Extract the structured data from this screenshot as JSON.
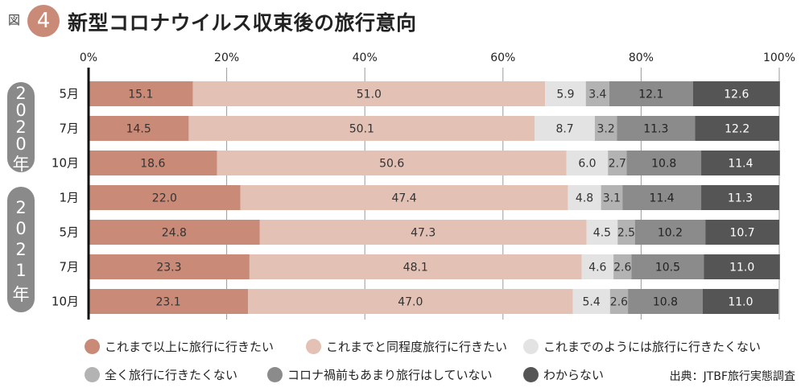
{
  "figure": {
    "fig_label": "図",
    "fig_number": "4",
    "title": "新型コロナウイルス収束後の旅行意向",
    "source": "出典：JTBF旅行実態調査"
  },
  "year_groups": [
    {
      "label": "2020年",
      "chars": [
        "2",
        "0",
        "2",
        "0",
        "年"
      ],
      "rows": 3
    },
    {
      "label": "2021年",
      "chars": [
        "2",
        "0",
        "2",
        "1",
        "年"
      ],
      "rows": 4
    }
  ],
  "chart_data": {
    "type": "bar",
    "orientation": "horizontal",
    "stacked": true,
    "percent": true,
    "title": "新型コロナウイルス収束後の旅行意向",
    "categories": [
      "5月",
      "7月",
      "10月",
      "1月",
      "5月",
      "7月",
      "10月"
    ],
    "xticks": [
      "0%",
      "20%",
      "40%",
      "60%",
      "80%",
      "100%"
    ],
    "xlim": [
      0,
      100
    ],
    "grid": true,
    "legend_position": "bottom",
    "series": [
      {
        "name": "これまで以上に旅行に行きたい",
        "color": "#c98a78",
        "label_color": "#333333",
        "values": [
          15.1,
          14.5,
          18.6,
          22.0,
          24.8,
          23.3,
          23.1
        ]
      },
      {
        "name": "これまでと同程度旅行に行きたい",
        "color": "#e3c1b5",
        "label_color": "#333333",
        "values": [
          51.0,
          50.1,
          50.6,
          47.4,
          47.3,
          48.1,
          47.0
        ]
      },
      {
        "name": "これまでのようには旅行に行きたくない",
        "color": "#e3e3e3",
        "label_color": "#333333",
        "values": [
          5.9,
          8.7,
          6.0,
          4.8,
          4.5,
          4.6,
          5.4
        ]
      },
      {
        "name": "全く旅行に行きたくない",
        "color": "#b3b3b3",
        "label_color": "#333333",
        "values": [
          3.4,
          3.2,
          2.7,
          3.1,
          2.5,
          2.6,
          2.6
        ]
      },
      {
        "name": "コロナ禍前もあまり旅行はしていない",
        "color": "#8b8b8b",
        "label_color": "#222222",
        "values": [
          12.1,
          11.3,
          10.8,
          11.4,
          10.2,
          10.5,
          10.8
        ]
      },
      {
        "name": "わからない",
        "color": "#555555",
        "label_color": "#ffffff",
        "values": [
          12.6,
          12.2,
          11.4,
          11.3,
          10.7,
          11.0,
          11.0
        ]
      }
    ]
  }
}
